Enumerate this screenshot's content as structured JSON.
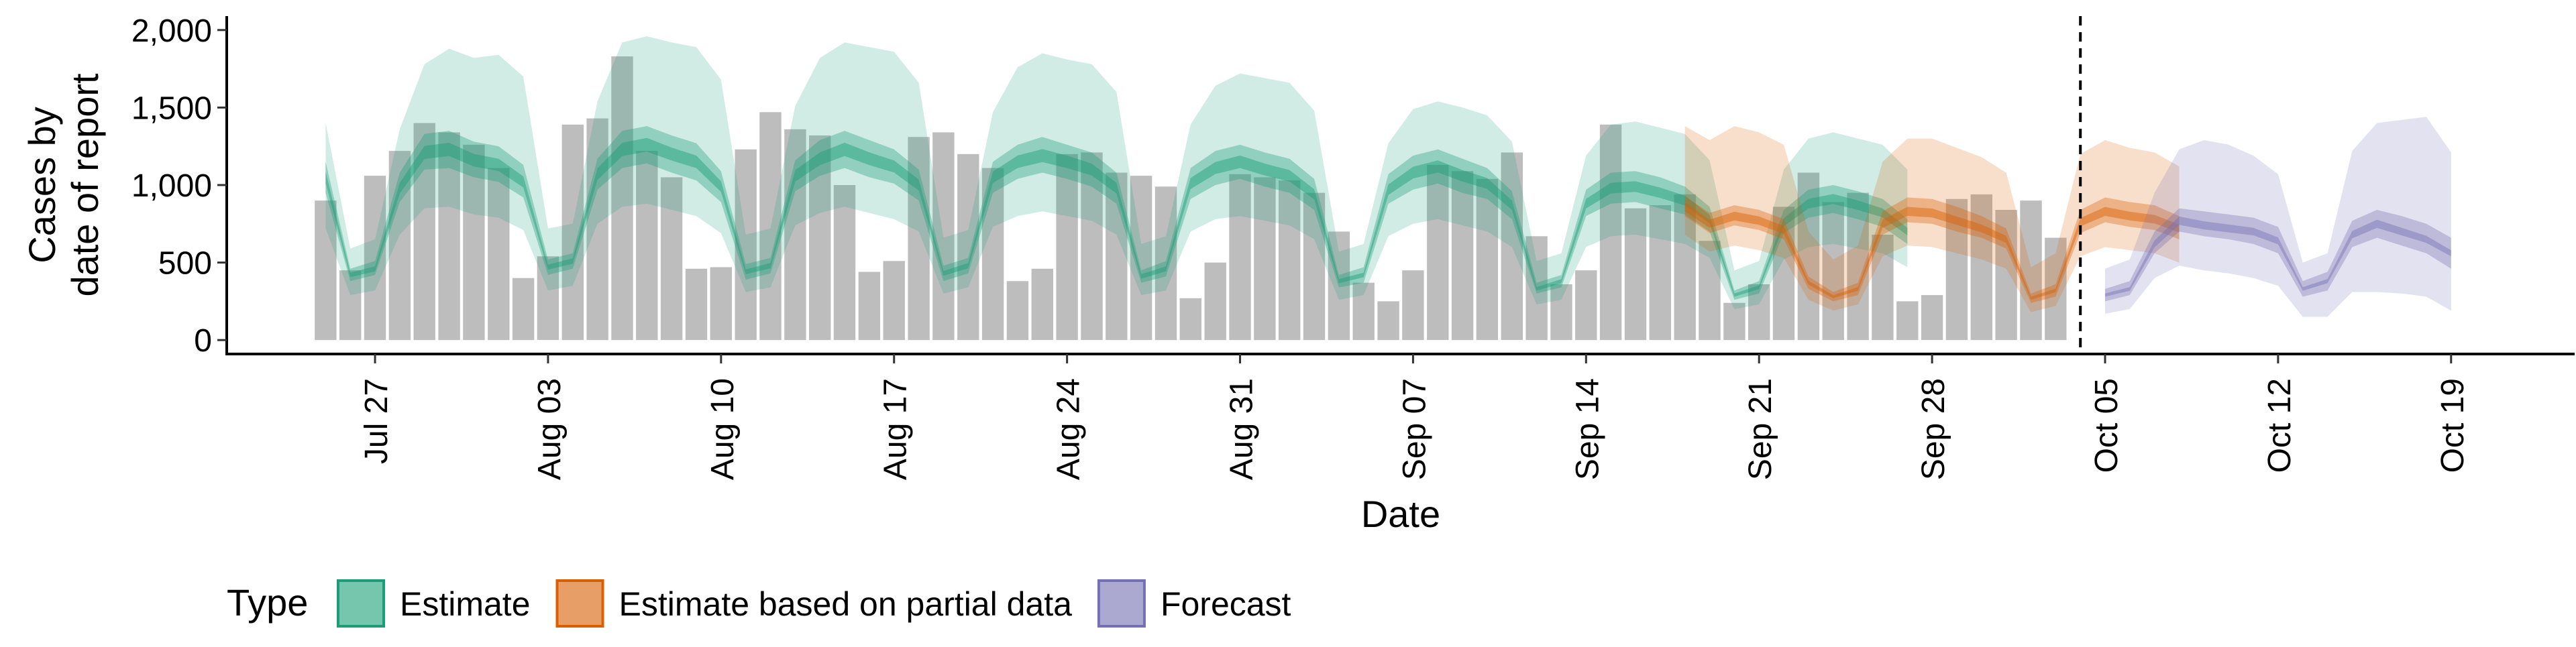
{
  "chart_data": {
    "type": "bar",
    "ylabel_lines": [
      "Cases by",
      "date of report"
    ],
    "xlabel": "Date",
    "ylim": [
      -90,
      2090
    ],
    "yticks": [
      0,
      500,
      1000,
      1500,
      2000
    ],
    "ytick_labels": [
      "0",
      "500",
      "1,000",
      "1,500",
      "2,000"
    ],
    "xlim": [
      "2020-07-21",
      "2020-10-24"
    ],
    "xticks": [
      "2020-07-27",
      "2020-08-03",
      "2020-08-10",
      "2020-08-17",
      "2020-08-24",
      "2020-08-31",
      "2020-09-07",
      "2020-09-14",
      "2020-09-21",
      "2020-09-28",
      "2020-10-05",
      "2020-10-12",
      "2020-10-19"
    ],
    "xtick_labels": [
      "Jul 27",
      "Aug 03",
      "Aug 10",
      "Aug 17",
      "Aug 24",
      "Aug 31",
      "Sep 07",
      "Sep 14",
      "Sep 21",
      "Sep 28",
      "Oct 05",
      "Oct 12",
      "Oct 19"
    ],
    "forecast_start": "2020-10-04",
    "legend_position": "bottom",
    "legend_title": "Type",
    "legend": [
      {
        "label": "Estimate",
        "fill": "#1b9e77",
        "stroke": "#1b9e77"
      },
      {
        "label": "Estimate based on partial data",
        "fill": "#d95f02",
        "stroke": "#d95f02"
      },
      {
        "label": "Forecast",
        "fill": "#7570b3",
        "stroke": "#7570b3"
      }
    ],
    "bar_color": "#bdbdbd",
    "reported": {
      "start": "2020-07-25",
      "values": [
        900,
        450,
        1060,
        1220,
        1400,
        1340,
        1260,
        1110,
        400,
        540,
        1390,
        1430,
        1830,
        1220,
        1050,
        460,
        470,
        1230,
        1470,
        1360,
        1320,
        1000,
        440,
        510,
        1310,
        1340,
        1200,
        1110,
        380,
        460,
        1200,
        1210,
        1080,
        1060,
        990,
        270,
        500,
        1070,
        1050,
        1030,
        950,
        700,
        370,
        250,
        450,
        1130,
        1090,
        1040,
        1210,
        670,
        360,
        450,
        1390,
        850,
        870,
        940,
        640,
        240,
        360,
        860,
        1080,
        890,
        950,
        680,
        250,
        290,
        910,
        940,
        840,
        900,
        660
      ]
    },
    "series": [
      {
        "name": "Estimate",
        "color": "#1b9e77",
        "start": "2020-07-25",
        "median": [
          1050,
          420,
          460,
          980,
          1210,
          1230,
          1160,
          1130,
          1020,
          470,
          510,
          1070,
          1230,
          1260,
          1200,
          1150,
          990,
          440,
          480,
          1060,
          1170,
          1230,
          1170,
          1120,
          1000,
          430,
          480,
          1050,
          1150,
          1190,
          1150,
          1100,
          980,
          410,
          460,
          1010,
          1110,
          1150,
          1100,
          1060,
          940,
          380,
          420,
          970,
          1080,
          1120,
          1060,
          1010,
          870,
          330,
          380,
          880,
          980,
          990,
          950,
          900,
          780,
          290,
          340,
          760,
          880,
          910,
          870,
          820,
          700
        ],
        "inner_lo": [
          950,
          380,
          420,
          890,
          1100,
          1110,
          1050,
          1020,
          920,
          420,
          460,
          970,
          1110,
          1140,
          1080,
          1030,
          890,
          390,
          430,
          960,
          1060,
          1110,
          1050,
          1010,
          900,
          380,
          430,
          950,
          1040,
          1080,
          1040,
          990,
          880,
          370,
          410,
          910,
          1000,
          1040,
          990,
          950,
          840,
          340,
          370,
          880,
          970,
          1010,
          950,
          910,
          780,
          300,
          340,
          800,
          880,
          890,
          850,
          810,
          700,
          260,
          300,
          690,
          790,
          820,
          780,
          730,
          620
        ],
        "inner_hi": [
          1150,
          460,
          510,
          1080,
          1330,
          1350,
          1280,
          1250,
          1130,
          520,
          560,
          1170,
          1350,
          1380,
          1320,
          1270,
          1090,
          490,
          530,
          1160,
          1290,
          1350,
          1290,
          1230,
          1100,
          480,
          530,
          1150,
          1260,
          1310,
          1260,
          1210,
          1080,
          450,
          510,
          1110,
          1220,
          1260,
          1210,
          1170,
          1040,
          420,
          470,
          1070,
          1190,
          1230,
          1170,
          1110,
          960,
          370,
          420,
          970,
          1080,
          1090,
          1050,
          990,
          860,
          320,
          380,
          840,
          970,
          1000,
          960,
          910,
          780
        ],
        "outer_lo": [
          720,
          290,
          320,
          680,
          850,
          860,
          810,
          790,
          710,
          320,
          350,
          750,
          860,
          880,
          840,
          800,
          690,
          310,
          340,
          740,
          820,
          860,
          820,
          780,
          700,
          300,
          340,
          730,
          800,
          830,
          800,
          770,
          680,
          290,
          320,
          700,
          780,
          800,
          770,
          740,
          650,
          260,
          290,
          670,
          750,
          780,
          740,
          700,
          600,
          230,
          260,
          600,
          670,
          680,
          650,
          620,
          530,
          200,
          230,
          520,
          600,
          620,
          590,
          560,
          470
        ],
        "outer_hi": [
          1400,
          590,
          650,
          1360,
          1780,
          1880,
          1820,
          1840,
          1700,
          720,
          750,
          1540,
          1920,
          1960,
          1920,
          1890,
          1680,
          680,
          720,
          1510,
          1820,
          1920,
          1890,
          1860,
          1660,
          660,
          710,
          1470,
          1760,
          1850,
          1810,
          1780,
          1600,
          620,
          670,
          1390,
          1640,
          1720,
          1690,
          1660,
          1480,
          570,
          620,
          1270,
          1490,
          1540,
          1500,
          1450,
          1280,
          510,
          560,
          1190,
          1390,
          1410,
          1370,
          1330,
          1160,
          450,
          510,
          1100,
          1300,
          1340,
          1300,
          1260,
          1100
        ]
      },
      {
        "name": "Estimate based on partial data",
        "color": "#d95f02",
        "start": "2020-09-18",
        "median": [
          860,
          750,
          800,
          770,
          710,
          370,
          280,
          330,
          750,
          830,
          820,
          770,
          720,
          650,
          270,
          320,
          760,
          830,
          800,
          780,
          720
        ],
        "inner_lo": [
          800,
          690,
          740,
          710,
          650,
          330,
          250,
          290,
          680,
          760,
          750,
          700,
          660,
          590,
          240,
          280,
          690,
          760,
          730,
          710,
          650
        ],
        "inner_hi": [
          930,
          820,
          870,
          840,
          780,
          410,
          310,
          370,
          830,
          920,
          910,
          860,
          800,
          720,
          300,
          360,
          840,
          920,
          890,
          870,
          800
        ],
        "outer_lo": [
          680,
          570,
          610,
          580,
          530,
          260,
          190,
          230,
          540,
          610,
          600,
          560,
          520,
          460,
          180,
          220,
          540,
          600,
          580,
          560,
          500
        ],
        "outer_hi": [
          1380,
          1290,
          1380,
          1340,
          1260,
          700,
          520,
          610,
          1150,
          1300,
          1300,
          1240,
          1180,
          1080,
          470,
          560,
          1200,
          1290,
          1240,
          1210,
          1120
        ]
      },
      {
        "name": "Forecast",
        "color": "#7570b3",
        "start": "2020-10-05",
        "median": [
          290,
          330,
          620,
          770,
          740,
          720,
          700,
          640,
          330,
          380,
          680,
          750,
          700,
          650,
          560
        ],
        "inner_lo": [
          250,
          290,
          560,
          700,
          670,
          650,
          620,
          560,
          280,
          320,
          600,
          660,
          610,
          560,
          460
        ],
        "inner_hi": [
          330,
          380,
          700,
          850,
          830,
          810,
          790,
          730,
          380,
          440,
          770,
          840,
          800,
          750,
          660
        ],
        "outer_lo": [
          170,
          200,
          400,
          480,
          450,
          430,
          400,
          350,
          150,
          150,
          310,
          310,
          300,
          280,
          190
        ],
        "outer_hi": [
          460,
          520,
          950,
          1230,
          1290,
          1260,
          1190,
          1070,
          500,
          560,
          1220,
          1400,
          1420,
          1440,
          1210
        ]
      }
    ]
  }
}
